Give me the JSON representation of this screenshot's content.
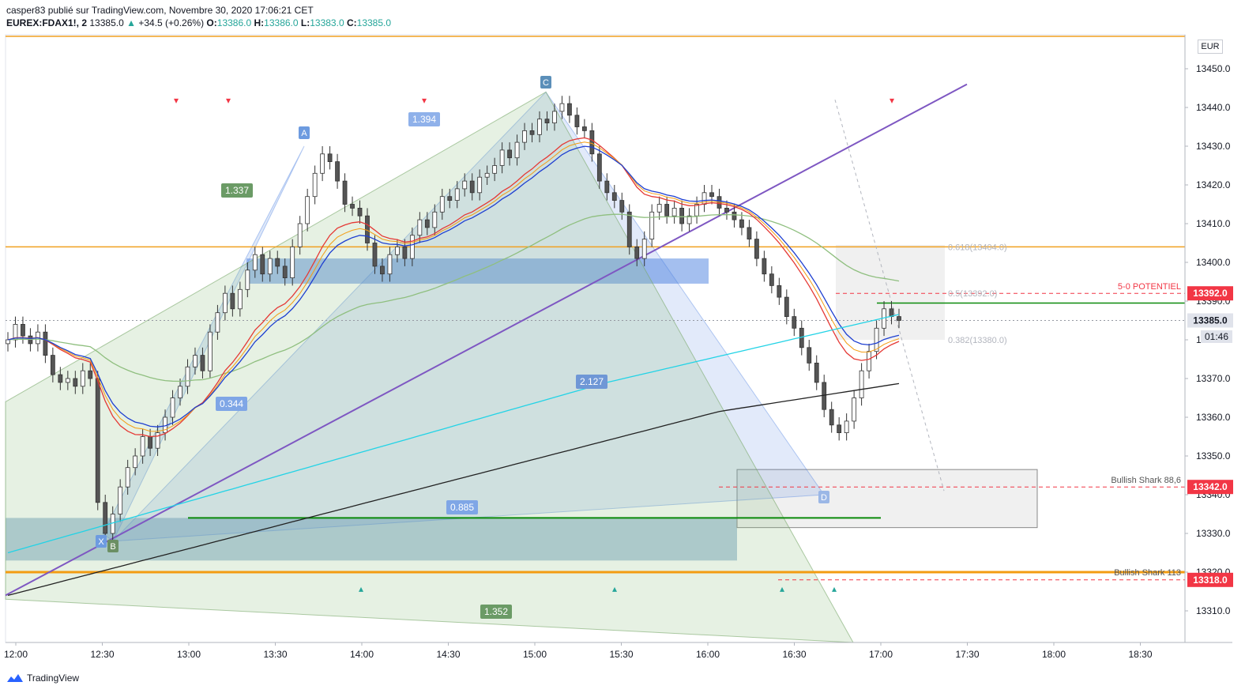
{
  "header": {
    "publish_line": "casper83 publié sur TradingView.com, Novembre 30, 2020 17:06:21 CET",
    "symbol": "EUREX:FDAX1!, 2",
    "last": "13385.0",
    "change": "+34.5 (+0.26%)",
    "o_label": "O:",
    "o": "13386.0",
    "h_label": "H:",
    "h": "13386.0",
    "l_label": "L:",
    "l": "13383.0",
    "c_label": "C:",
    "c": "13385.0"
  },
  "footer": {
    "brand": "TradingView"
  },
  "currency": "EUR",
  "chart_data": {
    "type": "candlestick",
    "ylim": [
      13300,
      13460
    ],
    "y_ticks": [
      13310,
      13320,
      13330,
      13340,
      13350,
      13360,
      13370,
      13380,
      13390,
      13400,
      13410,
      13420,
      13430,
      13440,
      13450
    ],
    "y_tick_labels": [
      "13310.0",
      "13320.0",
      "13330.0",
      "13340.0",
      "13350.0",
      "13360.0",
      "13370.0",
      "13380.0",
      "13390.0",
      "13400.0",
      "13410.0",
      "13420.0",
      "13430.0",
      "13440.0",
      "13450.0"
    ],
    "x_tick_labels": [
      "12:00",
      "12:30",
      "13:00",
      "13:30",
      "14:00",
      "14:30",
      "15:00",
      "15:30",
      "16:00",
      "16:30",
      "17:00",
      "17:30",
      "18:00",
      "18:30"
    ],
    "price_labels": [
      {
        "value": 13392.0,
        "text": "13392.0",
        "color": "#f23645"
      },
      {
        "value": 13385.0,
        "text": "13385.0",
        "color": "#e0e3eb"
      },
      {
        "value": 13342.0,
        "text": "13342.0",
        "color": "#f23645"
      },
      {
        "value": 13318.0,
        "text": "13318.0",
        "color": "#f23645"
      }
    ],
    "countdown": "01:46",
    "pattern_points": [
      "X",
      "A",
      "B",
      "C",
      "D"
    ],
    "ratios": [
      "1.337",
      "0.344",
      "1.394",
      "2.127",
      "0.885",
      "1.352"
    ],
    "fib_levels": [
      {
        "text": "0.618(13404.0)",
        "value": 13404
      },
      {
        "text": "0.5(13392.0)",
        "value": 13392
      },
      {
        "text": "0.382(13380.0)",
        "value": 13380
      }
    ],
    "annotations": [
      "5-0 POTENTIEL",
      "Bullish Shark 88,6",
      "Bullish Shark 113"
    ],
    "series": [
      {
        "name": "candles",
        "values": [
          13380,
          13384,
          13381,
          13379,
          13382,
          13376,
          13371,
          13369,
          13370,
          13368,
          13372,
          13370,
          13338,
          13330,
          13335,
          13342,
          13347,
          13350,
          13355,
          13352,
          13356,
          13360,
          13365,
          13368,
          13373,
          13376,
          13372,
          13382,
          13387,
          13392,
          13388,
          13393,
          13398,
          13402,
          13397,
          13401,
          13399,
          13396,
          13404,
          13410,
          13417,
          13423,
          13428,
          13426,
          13421,
          13415,
          13414,
          13412,
          13405,
          13399,
          13397,
          13402,
          13404,
          13401,
          13407,
          13411,
          13409,
          13413,
          13417,
          13416,
          13419,
          13421,
          13418,
          13422,
          13423,
          13425,
          13429,
          13427,
          13431,
          13434,
          13433,
          13437,
          13436,
          13439,
          13441,
          13438,
          13435,
          13434,
          13428,
          13421,
          13418,
          13416,
          13413,
          13404,
          13401,
          13406,
          13413,
          13415,
          13412,
          13414,
          13410,
          13412,
          13415,
          13418,
          13417,
          13414,
          13413,
          13411,
          13409,
          13406,
          13401,
          13397,
          13394,
          13391,
          13386,
          13383,
          13378,
          13374,
          13369,
          13362,
          13358,
          13356,
          13359,
          13365,
          13372,
          13377,
          13383,
          13388,
          13386,
          13385
        ]
      }
    ]
  }
}
